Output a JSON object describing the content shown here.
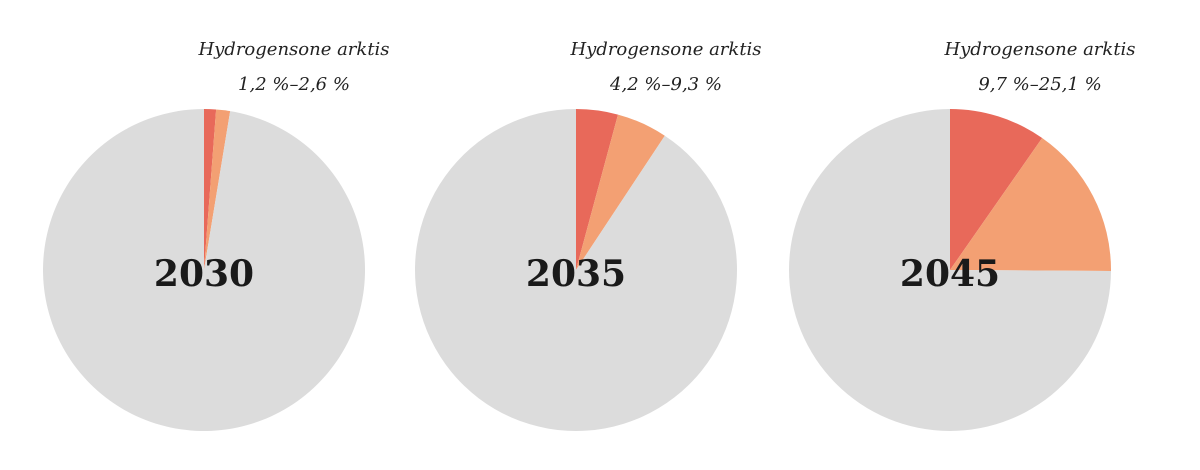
{
  "chart_data": [
    {
      "type": "pie",
      "center_label": "2030",
      "annotation_title": "Hydrogensone arktis",
      "annotation_range": "1,2 %–2,6 %",
      "slices": [
        {
          "value": 1.2,
          "color": "#E8695A"
        },
        {
          "value": 1.4,
          "color": "#F3A073"
        },
        {
          "value": 97.4,
          "color": "#DCDCDC"
        }
      ]
    },
    {
      "type": "pie",
      "center_label": "2035",
      "annotation_title": "Hydrogensone arktis",
      "annotation_range": "4,2 %–9,3 %",
      "slices": [
        {
          "value": 4.2,
          "color": "#E8695A"
        },
        {
          "value": 5.1,
          "color": "#F3A073"
        },
        {
          "value": 90.7,
          "color": "#DCDCDC"
        }
      ]
    },
    {
      "type": "pie",
      "center_label": "2045",
      "annotation_title": "Hydrogensone arktis",
      "annotation_range": "9,7 %–25,1 %",
      "slices": [
        {
          "value": 9.7,
          "color": "#E8695A"
        },
        {
          "value": 15.4,
          "color": "#F3A073"
        },
        {
          "value": 74.9,
          "color": "#DCDCDC"
        }
      ]
    }
  ]
}
